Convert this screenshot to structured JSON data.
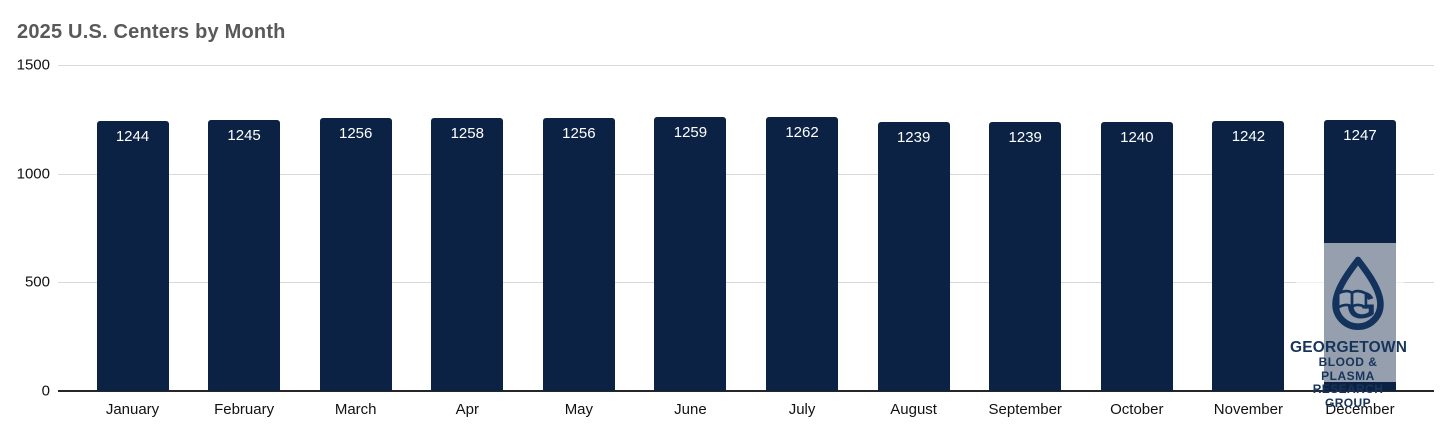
{
  "chart_data": {
    "type": "bar",
    "title": "2025 U.S. Centers by Month",
    "categories": [
      "January",
      "February",
      "March",
      "Apr",
      "May",
      "June",
      "July",
      "August",
      "September",
      "October",
      "November",
      "December"
    ],
    "values": [
      1244,
      1245,
      1256,
      1258,
      1256,
      1259,
      1262,
      1239,
      1239,
      1240,
      1242,
      1247
    ],
    "xlabel": "",
    "ylabel": "",
    "ylim": [
      0,
      1500
    ],
    "yticks": [
      0,
      500,
      1000,
      1500
    ],
    "grid": true,
    "legend": false,
    "bar_color": "#0b2244",
    "value_label_color": "#ffffff",
    "title_color": "#595959",
    "gridline_color": "#d9d9d9",
    "axis_line_color": "#262626"
  },
  "watermark": {
    "lines": [
      "GEORGETOWN",
      "BLOOD & PLASMA",
      "RESEARCH GROUP"
    ],
    "icon": "water-drop-book-g-logo",
    "logo_color": "#14335c",
    "overlay_color": "rgba(255,255,255,0.57)"
  }
}
